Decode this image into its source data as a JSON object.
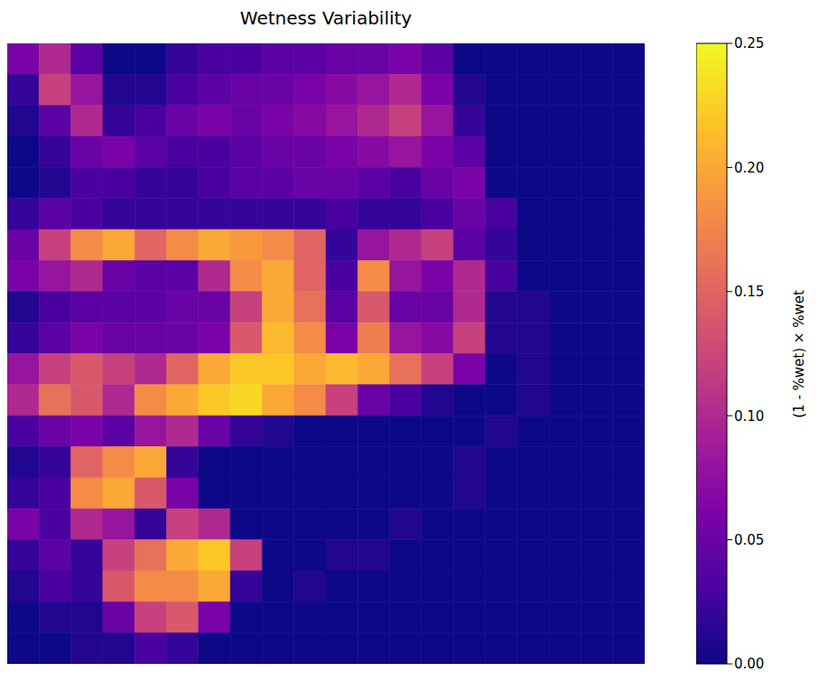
{
  "chart_data": {
    "type": "heatmap",
    "title": "Wetness Variability",
    "tick_labels": false,
    "cells": [
      [
        0.06,
        0.1,
        0.04,
        0,
        0,
        0.02,
        0.03,
        0.03,
        0.04,
        0.04,
        0.05,
        0.05,
        0.06,
        0.04,
        0,
        0,
        0,
        0,
        0,
        0
      ],
      [
        0.02,
        0.12,
        0.08,
        0.01,
        0.01,
        0.03,
        0.04,
        0.05,
        0.05,
        0.06,
        0.07,
        0.08,
        0.1,
        0.06,
        0.01,
        0,
        0,
        0,
        0,
        0
      ],
      [
        0.01,
        0.04,
        0.1,
        0.02,
        0.03,
        0.05,
        0.06,
        0.05,
        0.06,
        0.07,
        0.08,
        0.1,
        0.12,
        0.08,
        0.02,
        0,
        0,
        0,
        0,
        0
      ],
      [
        0,
        0.02,
        0.05,
        0.06,
        0.04,
        0.03,
        0.03,
        0.04,
        0.05,
        0.05,
        0.06,
        0.07,
        0.08,
        0.06,
        0.04,
        0,
        0,
        0,
        0,
        0
      ],
      [
        0,
        0.01,
        0.03,
        0.03,
        0.02,
        0.02,
        0.03,
        0.04,
        0.04,
        0.05,
        0.05,
        0.04,
        0.03,
        0.05,
        0.06,
        0,
        0,
        0,
        0,
        0
      ],
      [
        0.02,
        0.04,
        0.03,
        0.02,
        0.02,
        0.02,
        0.02,
        0.02,
        0.02,
        0.02,
        0.03,
        0.02,
        0.02,
        0.03,
        0.05,
        0.03,
        0,
        0,
        0,
        0
      ],
      [
        0.05,
        0.12,
        0.18,
        0.2,
        0.15,
        0.18,
        0.2,
        0.19,
        0.18,
        0.15,
        0.02,
        0.08,
        0.1,
        0.12,
        0.04,
        0.02,
        0,
        0,
        0,
        0
      ],
      [
        0.06,
        0.08,
        0.1,
        0.05,
        0.04,
        0.04,
        0.1,
        0.18,
        0.2,
        0.15,
        0.03,
        0.18,
        0.08,
        0.06,
        0.1,
        0.03,
        0,
        0,
        0,
        0
      ],
      [
        0.01,
        0.03,
        0.04,
        0.04,
        0.04,
        0.05,
        0.05,
        0.12,
        0.2,
        0.16,
        0.04,
        0.14,
        0.05,
        0.05,
        0.1,
        0.01,
        0.01,
        0,
        0,
        0
      ],
      [
        0.02,
        0.04,
        0.06,
        0.05,
        0.05,
        0.05,
        0.06,
        0.14,
        0.21,
        0.18,
        0.06,
        0.17,
        0.08,
        0.07,
        0.12,
        0.01,
        0.01,
        0,
        0,
        0
      ],
      [
        0.08,
        0.12,
        0.14,
        0.12,
        0.1,
        0.15,
        0.2,
        0.22,
        0.22,
        0.2,
        0.21,
        0.2,
        0.16,
        0.12,
        0.06,
        0,
        0.01,
        0,
        0,
        0
      ],
      [
        0.1,
        0.16,
        0.14,
        0.1,
        0.18,
        0.2,
        0.22,
        0.23,
        0.2,
        0.18,
        0.12,
        0.05,
        0.03,
        0.01,
        0,
        0,
        0.01,
        0,
        0,
        0
      ],
      [
        0.03,
        0.05,
        0.06,
        0.04,
        0.08,
        0.1,
        0.05,
        0.02,
        0.01,
        0,
        0,
        0,
        0,
        0,
        0,
        0.01,
        0,
        0,
        0,
        0
      ],
      [
        0.01,
        0.02,
        0.15,
        0.18,
        0.2,
        0.02,
        0,
        0,
        0,
        0,
        0,
        0,
        0,
        0,
        0.01,
        0,
        0,
        0,
        0,
        0
      ],
      [
        0.02,
        0.03,
        0.18,
        0.2,
        0.14,
        0.06,
        0,
        0,
        0,
        0,
        0,
        0,
        0,
        0,
        0.01,
        0,
        0,
        0,
        0,
        0
      ],
      [
        0.06,
        0.03,
        0.1,
        0.08,
        0.02,
        0.12,
        0.1,
        0,
        0,
        0,
        0,
        0,
        0.01,
        0,
        0,
        0,
        0,
        0,
        0,
        0
      ],
      [
        0.02,
        0.04,
        0.02,
        0.12,
        0.16,
        0.2,
        0.22,
        0.12,
        0,
        0,
        0.01,
        0.01,
        0,
        0,
        0,
        0,
        0,
        0,
        0,
        0
      ],
      [
        0.01,
        0.03,
        0.02,
        0.14,
        0.18,
        0.18,
        0.2,
        0.02,
        0,
        0.01,
        0,
        0,
        0,
        0,
        0,
        0,
        0,
        0,
        0,
        0
      ],
      [
        0,
        0.01,
        0.01,
        0.05,
        0.12,
        0.14,
        0.06,
        0,
        0,
        0,
        0,
        0,
        0,
        0,
        0,
        0,
        0,
        0,
        0,
        0
      ],
      [
        0,
        0,
        0.01,
        0.01,
        0.03,
        0.02,
        0,
        0,
        0,
        0,
        0,
        0,
        0,
        0,
        0,
        0,
        0,
        0,
        0,
        0
      ]
    ],
    "colorbar": {
      "label": "(1 - %wet) × %wet",
      "range": [
        0,
        0.25
      ],
      "ticks": [
        {
          "value": 0,
          "label": "0.00"
        },
        0.05,
        {
          "value": 0.1,
          "label": "0.10"
        },
        0.15,
        {
          "value": 0.2,
          "label": "0.20"
        },
        0.25
      ]
    }
  }
}
